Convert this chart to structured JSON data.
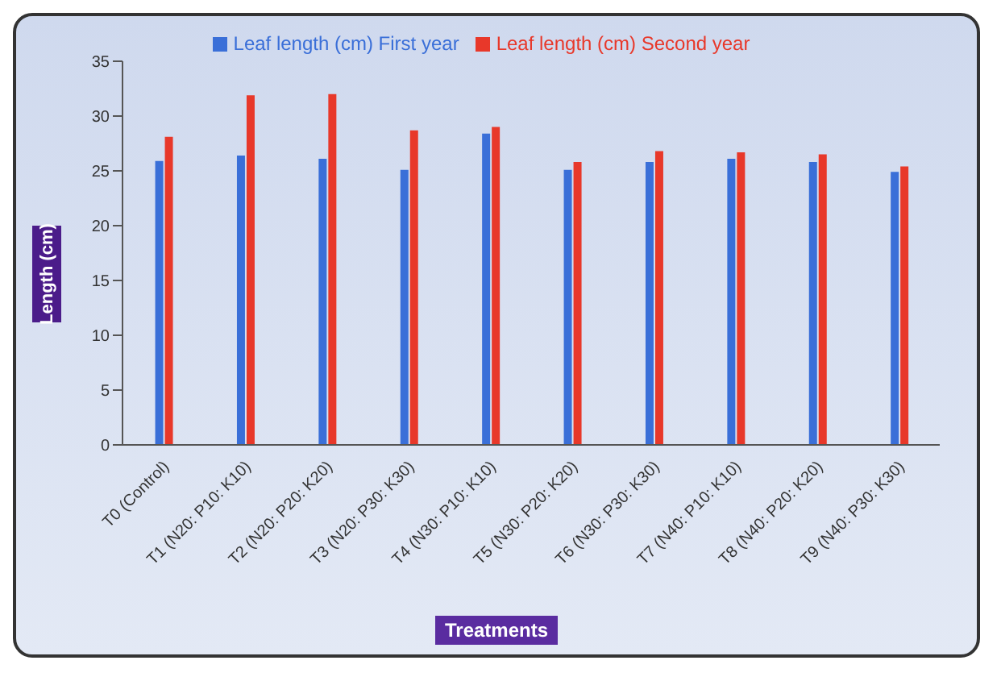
{
  "chart_data": {
    "type": "bar",
    "xlabel": "Treatments",
    "ylabel": "Length (cm)",
    "categories": [
      "T0 (Control)",
      "T1 (N20: P10: K10)",
      "T2 (N20: P20: K20)",
      "T3 (N20: P30: K30)",
      "T4 (N30: P10: K10)",
      "T5 (N30: P20: K20)",
      "T6 (N30: P30: K30)",
      "T7 (N40: P10: K10)",
      "T8 (N40: P20: K20)",
      "T9 (N40: P30: K30)"
    ],
    "series": [
      {
        "name": "Leaf length (cm) First year",
        "color": "#3a6fd8",
        "values": [
          25.9,
          26.4,
          26.1,
          25.1,
          28.4,
          25.1,
          25.8,
          26.1,
          25.8,
          24.9
        ]
      },
      {
        "name": "Leaf length (cm) Second year",
        "color": "#e8382a",
        "values": [
          28.1,
          31.9,
          32.0,
          28.7,
          29.0,
          25.8,
          26.8,
          26.7,
          26.5,
          25.4
        ]
      }
    ],
    "ylim": [
      0,
      35
    ],
    "yticks": [
      0,
      5,
      10,
      15,
      20,
      25,
      30,
      35
    ],
    "grid": false,
    "legend": "top"
  }
}
